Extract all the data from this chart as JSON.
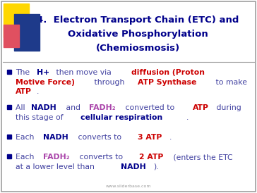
{
  "title_line1": "4.  Electron Transport Chain (ETC) and",
  "title_line2": "Oxidative Phosphorylation",
  "title_line3": "(Chemiosmosis)",
  "title_color": "#00008B",
  "background_color": "#FFFFFF",
  "border_color": "#A0A0A0",
  "bullet_color": "#1a1a8c",
  "watermark": "www.sliderbase.com",
  "fig_width": 3.64,
  "fig_height": 2.74,
  "dpi": 100
}
